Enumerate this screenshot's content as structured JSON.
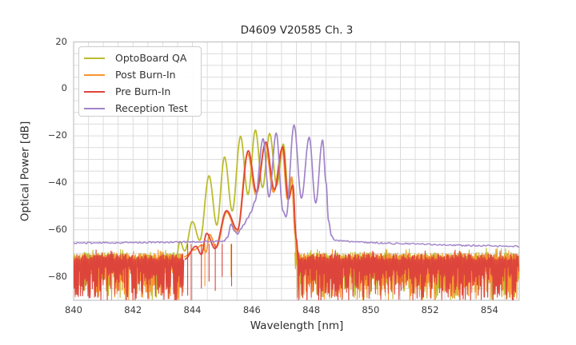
{
  "figure": {
    "title": "D4609 V20585 Ch. 3"
  },
  "axes": {
    "xlabel": "Wavelength [nm]",
    "ylabel": "Optical Power [dB]",
    "xtick_labels": [
      "840",
      "842",
      "844",
      "846",
      "848",
      "850",
      "852",
      "854"
    ],
    "ytick_labels": [
      "20",
      "0",
      "−20",
      "−40",
      "−60",
      "−80"
    ]
  },
  "legend": {
    "items": [
      {
        "label": "OptoBoard QA",
        "color": "#bcbd2f"
      },
      {
        "label": "Post Burn-In",
        "color": "#f9962f"
      },
      {
        "label": "Pre Burn-In",
        "color": "#dd453c"
      },
      {
        "label": "Reception Test",
        "color": "#a184c9"
      }
    ]
  },
  "chart_data": {
    "type": "line",
    "title": "D4609 V20585 Ch. 3",
    "xlabel": "Wavelength [nm]",
    "ylabel": "Optical Power [dB]",
    "xlim": [
      840,
      855
    ],
    "ylim": [
      -90,
      20
    ],
    "x_tick_values": [
      840,
      842,
      844,
      846,
      848,
      850,
      852,
      854
    ],
    "y_tick_values": [
      20,
      0,
      -20,
      -40,
      -60,
      -80
    ],
    "grid": {
      "on": true,
      "x_step": 0.5,
      "y_step": 5,
      "color": "#dcdcdc",
      "spine_color": "#c3c3c3"
    },
    "legend_position": "upper left",
    "series": [
      {
        "name": "OptoBoard QA",
        "color": "#bcbd2f",
        "style": "comb+noise",
        "seed": 11,
        "noise_top": -70.8,
        "noise_regions": [
          [
            840,
            843.58
          ],
          [
            847.45,
            855
          ]
        ],
        "spikes": [],
        "comb": [
          [
            843.45,
            -72
          ],
          [
            843.58,
            -65
          ],
          [
            843.74,
            -69
          ],
          [
            844.0,
            -56.5
          ],
          [
            844.25,
            -64.5
          ],
          [
            844.56,
            -37
          ],
          [
            844.82,
            -58
          ],
          [
            845.08,
            -29
          ],
          [
            845.34,
            -52
          ],
          [
            845.62,
            -20.2
          ],
          [
            845.87,
            -45
          ],
          [
            846.12,
            -17.5
          ],
          [
            846.36,
            -42
          ],
          [
            846.6,
            -19
          ],
          [
            846.84,
            -41
          ],
          [
            847.06,
            -23.5
          ],
          [
            847.24,
            -46
          ],
          [
            847.35,
            -38
          ],
          [
            847.44,
            -58
          ],
          [
            847.5,
            -72
          ]
        ]
      },
      {
        "name": "Post Burn-In",
        "color": "#f9962f",
        "style": "comb+noise",
        "seed": 22,
        "noise_top": -71.2,
        "noise_regions": [
          [
            840,
            843.7
          ],
          [
            847.52,
            855
          ]
        ],
        "spikes": [
          [
            844.42,
            -84
          ],
          [
            845.3,
            -80
          ]
        ],
        "comb": [
          [
            843.72,
            -71.5
          ],
          [
            844.05,
            -68.5
          ],
          [
            844.33,
            -66.5
          ],
          [
            844.45,
            -69.5
          ],
          [
            844.58,
            -62
          ],
          [
            844.8,
            -67.5
          ],
          [
            845.15,
            -52.5
          ],
          [
            845.5,
            -61
          ],
          [
            845.86,
            -27.5
          ],
          [
            846.14,
            -45
          ],
          [
            846.45,
            -23.5
          ],
          [
            846.73,
            -44
          ],
          [
            847.02,
            -25.5
          ],
          [
            847.2,
            -47
          ],
          [
            847.34,
            -37.5
          ],
          [
            847.46,
            -62
          ],
          [
            847.54,
            -73
          ]
        ]
      },
      {
        "name": "Pre Burn-In",
        "color": "#dd453c",
        "style": "comb+noise",
        "seed": 33,
        "noise_top": -71.6,
        "noise_regions": [
          [
            840,
            843.72
          ],
          [
            847.55,
            855
          ]
        ],
        "spikes": [
          [
            843.84,
            -88
          ],
          [
            843.96,
            -90
          ],
          [
            844.3,
            -85
          ],
          [
            844.56,
            -82
          ],
          [
            844.77,
            -86
          ],
          [
            845.0,
            -80
          ],
          [
            845.32,
            -84
          ]
        ],
        "comb": [
          [
            843.74,
            -72.5
          ],
          [
            844.12,
            -67
          ],
          [
            844.3,
            -70.5
          ],
          [
            844.48,
            -61.5
          ],
          [
            844.76,
            -68
          ],
          [
            845.15,
            -51.8
          ],
          [
            845.52,
            -60
          ],
          [
            845.88,
            -26.3
          ],
          [
            846.16,
            -44
          ],
          [
            846.47,
            -22.6
          ],
          [
            846.76,
            -43
          ],
          [
            847.04,
            -24.6
          ],
          [
            847.23,
            -47
          ],
          [
            847.38,
            -41
          ],
          [
            847.5,
            -64
          ],
          [
            847.57,
            -74
          ]
        ]
      },
      {
        "name": "Reception Test",
        "color": "#a184c9",
        "style": "floor+comb",
        "seed": 44,
        "floor_noise_amp": 0.7,
        "floor_left": [
          [
            840,
            -65.6
          ],
          [
            841.5,
            -65.5
          ],
          [
            843.0,
            -65.3
          ],
          [
            844.0,
            -65.1
          ],
          [
            845.05,
            -64.9
          ]
        ],
        "comb": [
          [
            845.05,
            -64.9
          ],
          [
            845.18,
            -63.2
          ],
          [
            845.3,
            -57.6
          ],
          [
            845.42,
            -60.5
          ],
          [
            845.52,
            -61.8
          ],
          [
            845.63,
            -59.6
          ],
          [
            845.73,
            -57.8
          ],
          [
            845.86,
            -55
          ],
          [
            845.97,
            -52.5
          ],
          [
            846.1,
            -48
          ],
          [
            846.38,
            -21.2
          ],
          [
            846.58,
            -46
          ],
          [
            846.82,
            -18.8
          ],
          [
            847.05,
            -52
          ],
          [
            847.15,
            -54.5
          ],
          [
            847.42,
            -15.4
          ],
          [
            847.67,
            -46.5
          ],
          [
            847.93,
            -20.6
          ],
          [
            848.15,
            -48.6
          ],
          [
            848.38,
            -21.8
          ],
          [
            848.5,
            -40
          ],
          [
            848.58,
            -56
          ],
          [
            848.68,
            -62.5
          ],
          [
            848.78,
            -64.3
          ]
        ],
        "floor_right": [
          [
            848.78,
            -64.3
          ],
          [
            849.4,
            -65.1
          ],
          [
            850.5,
            -65.7
          ],
          [
            851.8,
            -66.1
          ],
          [
            853.2,
            -66.7
          ],
          [
            855,
            -67.1
          ]
        ]
      }
    ]
  }
}
